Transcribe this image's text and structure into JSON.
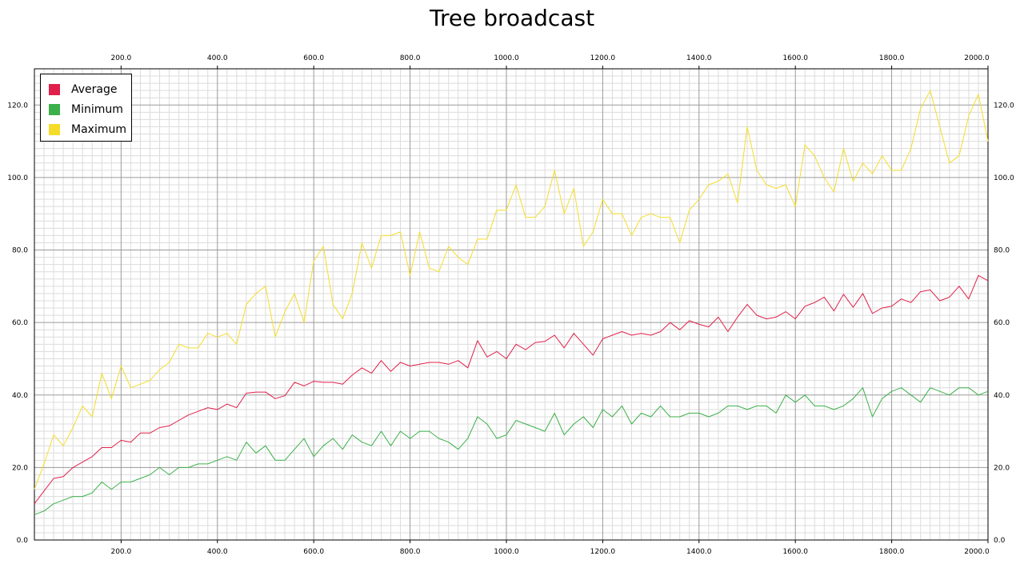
{
  "chart_data": {
    "type": "line",
    "title": "Tree broadcast",
    "xlabel": "",
    "ylabel": "",
    "xlim": [
      20,
      2000
    ],
    "ylim": [
      0,
      130
    ],
    "x_ticks": [
      "200.0",
      "400.0",
      "600.0",
      "800.0",
      "1000.0",
      "1200.0",
      "1400.0",
      "1600.0",
      "1800.0",
      "2000.0"
    ],
    "y_ticks": [
      "0.0",
      "20.0",
      "40.0",
      "60.0",
      "80.0",
      "100.0",
      "120.0"
    ],
    "grid": true,
    "legend_position": "top-left",
    "x": [
      20,
      40,
      60,
      80,
      100,
      120,
      140,
      160,
      180,
      200,
      220,
      240,
      260,
      280,
      300,
      320,
      340,
      360,
      380,
      400,
      420,
      440,
      460,
      480,
      500,
      520,
      540,
      560,
      580,
      600,
      620,
      640,
      660,
      680,
      700,
      720,
      740,
      760,
      780,
      800,
      820,
      840,
      860,
      880,
      900,
      920,
      940,
      960,
      980,
      1000,
      1020,
      1040,
      1060,
      1080,
      1100,
      1120,
      1140,
      1160,
      1180,
      1200,
      1220,
      1240,
      1260,
      1280,
      1300,
      1320,
      1340,
      1360,
      1380,
      1400,
      1420,
      1440,
      1460,
      1480,
      1500,
      1520,
      1540,
      1560,
      1580,
      1600,
      1620,
      1640,
      1660,
      1680,
      1700,
      1720,
      1740,
      1760,
      1780,
      1800,
      1820,
      1840,
      1860,
      1880,
      1900,
      1920,
      1940,
      1960,
      1980,
      2000
    ],
    "series": [
      {
        "name": "Average",
        "color": "#e0204a",
        "values": [
          10,
          13.5,
          17,
          17.5,
          20,
          21.5,
          23,
          25.5,
          25.5,
          27.5,
          27,
          29.5,
          29.5,
          31,
          31.5,
          33,
          34.5,
          35.5,
          36.5,
          36,
          37.5,
          36.5,
          40.5,
          40.8,
          40.8,
          39,
          39.8,
          43.5,
          42.5,
          43.8,
          43.5,
          43.5,
          43,
          45.5,
          47.5,
          46,
          49.5,
          46.5,
          49,
          48,
          48.5,
          49,
          49,
          48.5,
          49.5,
          47.5,
          55,
          50.5,
          52,
          50,
          54,
          52.5,
          54.5,
          54.8,
          56.5,
          53,
          57,
          54,
          51,
          55.5,
          56.5,
          57.5,
          56.5,
          57,
          56.5,
          57.5,
          60,
          58,
          60.5,
          59.5,
          58.8,
          61.5,
          57.5,
          61.5,
          65,
          62,
          61,
          61.5,
          63,
          61,
          64.5,
          65.5,
          67,
          63.2,
          67.8,
          64.2,
          68,
          62.5,
          64,
          64.5,
          66.5,
          65.5,
          68.5,
          69,
          66,
          67,
          70,
          66.5,
          73,
          71.5
        ]
      },
      {
        "name": "Minimum",
        "color": "#3cb04a",
        "values": [
          7,
          8,
          10,
          11,
          12,
          12,
          13,
          16,
          14,
          16,
          16,
          17,
          18,
          20,
          18,
          20,
          20,
          21,
          21,
          22,
          23,
          22,
          27,
          24,
          26,
          22,
          22,
          25,
          28,
          23,
          26,
          28,
          25,
          29,
          27,
          26,
          30,
          26,
          30,
          28,
          30,
          30,
          28,
          27,
          25,
          28,
          34,
          32,
          28,
          29,
          33,
          32,
          31,
          30,
          35,
          29,
          32,
          34,
          31,
          36,
          34,
          37,
          32,
          35,
          34,
          37,
          34,
          34,
          35,
          35,
          34,
          35,
          37,
          37,
          36,
          37,
          37,
          35,
          40,
          38,
          40,
          37,
          37,
          36,
          37,
          39,
          42,
          34,
          39,
          41,
          42,
          40,
          38,
          42,
          41,
          40,
          42,
          42,
          40,
          41
        ]
      },
      {
        "name": "Maximum",
        "color": "#f5dc2a",
        "values": [
          14,
          21,
          29,
          26,
          31,
          37,
          34,
          46,
          39,
          48,
          42,
          43,
          44,
          47,
          49,
          54,
          53,
          53,
          57,
          56,
          57,
          54,
          65,
          68,
          70,
          56,
          63,
          68,
          60,
          77,
          81,
          65,
          61,
          68,
          82,
          75,
          84,
          84,
          85,
          73,
          85,
          75,
          74,
          81,
          78,
          76,
          83,
          83,
          91,
          91,
          98,
          89,
          89,
          92,
          102,
          90,
          97,
          81,
          85,
          94,
          90,
          90,
          84,
          89,
          90,
          89,
          89,
          82,
          91,
          94,
          98,
          99,
          101,
          93,
          114,
          102,
          98,
          97,
          98,
          92,
          109,
          106,
          100,
          96,
          108,
          99,
          104,
          101,
          106,
          102,
          102,
          108,
          119,
          124,
          114,
          104,
          106,
          117,
          123,
          110
        ]
      }
    ]
  }
}
